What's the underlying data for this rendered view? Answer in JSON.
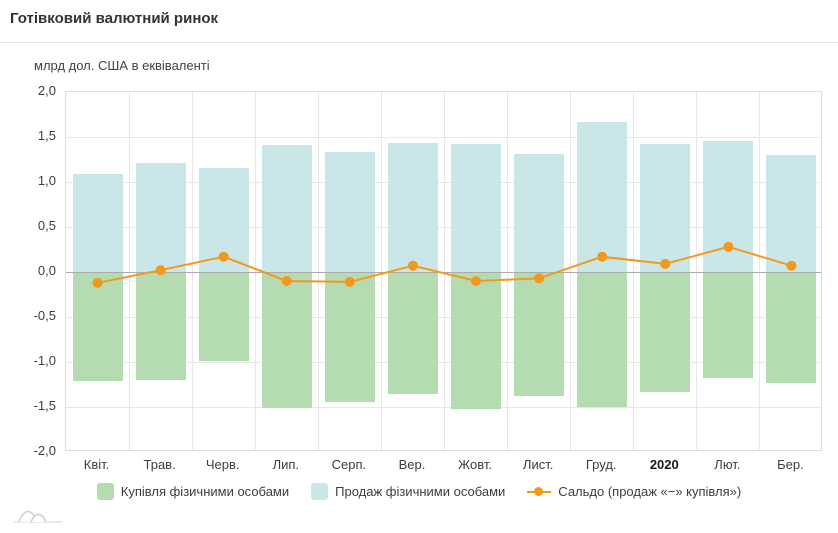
{
  "header": {
    "title": "Готівковий валютний ринок"
  },
  "chart": {
    "axis_title": "млрд дол. США в еквіваленті"
  },
  "colors": {
    "purchase_green": "#b5dbb1",
    "sales_blue": "#c9e7e8",
    "saldo_orange": "#f2991d",
    "gridline": "#e7e7e7",
    "zero_line": "#ababab"
  },
  "chart_data": {
    "type": "bar+line",
    "title": "Готівковий валютний ринок",
    "ylabel": "млрд дол. США в еквіваленті",
    "categories": [
      "Квіт.",
      "Трав.",
      "Черв.",
      "Лип.",
      "Серп.",
      "Вер.",
      "Жовт.",
      "Лист.",
      "Груд.",
      "2020",
      "Лют.",
      "Бер."
    ],
    "emphasized_category": "2020",
    "series": [
      {
        "name": "Купівля фізичними особами",
        "type": "bar",
        "color": "#b5dbb1",
        "values": [
          -1.21,
          -1.2,
          -0.99,
          -1.51,
          -1.44,
          -1.36,
          -1.52,
          -1.38,
          -1.5,
          -1.33,
          -1.18,
          -1.23
        ]
      },
      {
        "name": "Продаж фізичними особами",
        "type": "bar",
        "color": "#c9e7e8",
        "values": [
          1.09,
          1.21,
          1.16,
          1.41,
          1.33,
          1.43,
          1.42,
          1.31,
          1.67,
          1.42,
          1.46,
          1.3
        ]
      },
      {
        "name": "Сальдо (продаж «−» купівля»)",
        "type": "line",
        "color": "#f2991d",
        "values": [
          -0.12,
          0.02,
          0.17,
          -0.1,
          -0.11,
          0.07,
          -0.1,
          -0.07,
          0.17,
          0.09,
          0.28,
          0.07
        ]
      }
    ],
    "ylim": [
      -2,
      2
    ],
    "ytick_step": 0.5,
    "ytick_labels": [
      "2,0",
      "1,5",
      "1,0",
      "0,5",
      "0,0",
      "-0,5",
      "-1,0",
      "-1,5",
      "-2,0"
    ],
    "grid": true,
    "legend_position": "bottom"
  }
}
